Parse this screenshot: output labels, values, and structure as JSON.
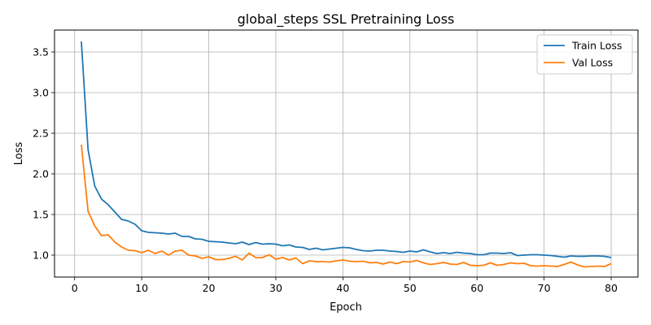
{
  "chart_data": {
    "type": "line",
    "title": "global_steps SSL Pretraining Loss",
    "xlabel": "Epoch",
    "ylabel": "Loss",
    "xlim": [
      -3,
      84
    ],
    "ylim": [
      0.73,
      3.77
    ],
    "xticks": [
      0,
      10,
      20,
      30,
      40,
      50,
      60,
      70,
      80
    ],
    "yticks": [
      1.0,
      1.5,
      2.0,
      2.5,
      3.0,
      3.5
    ],
    "xtick_labels": [
      "0",
      "10",
      "20",
      "30",
      "40",
      "50",
      "60",
      "70",
      "80"
    ],
    "ytick_labels": [
      "1.0",
      "1.5",
      "2.0",
      "2.5",
      "3.0",
      "3.5"
    ],
    "grid": true,
    "legend": "top-right",
    "x": [
      1,
      2,
      3,
      4,
      5,
      6,
      7,
      8,
      9,
      10,
      11,
      12,
      13,
      14,
      15,
      16,
      17,
      18,
      19,
      20,
      21,
      22,
      23,
      24,
      25,
      26,
      27,
      28,
      29,
      30,
      31,
      32,
      33,
      34,
      35,
      36,
      37,
      38,
      39,
      40,
      41,
      42,
      43,
      44,
      45,
      46,
      47,
      48,
      49,
      50,
      51,
      52,
      53,
      54,
      55,
      56,
      57,
      58,
      59,
      60,
      61,
      62,
      63,
      64,
      65,
      66,
      67,
      68,
      69,
      70,
      71,
      72,
      73,
      74,
      75,
      76,
      77,
      78,
      79,
      80
    ],
    "series": [
      {
        "name": "Train Loss",
        "color": "#1f77b4",
        "values": [
          3.63,
          2.3,
          1.85,
          1.69,
          1.62,
          1.53,
          1.44,
          1.42,
          1.38,
          1.3,
          1.28,
          1.275,
          1.27,
          1.26,
          1.27,
          1.23,
          1.23,
          1.2,
          1.195,
          1.17,
          1.165,
          1.16,
          1.15,
          1.14,
          1.16,
          1.13,
          1.155,
          1.135,
          1.14,
          1.135,
          1.115,
          1.125,
          1.1,
          1.095,
          1.07,
          1.085,
          1.065,
          1.075,
          1.085,
          1.095,
          1.09,
          1.07,
          1.055,
          1.05,
          1.06,
          1.06,
          1.05,
          1.045,
          1.035,
          1.05,
          1.04,
          1.065,
          1.04,
          1.02,
          1.03,
          1.02,
          1.035,
          1.025,
          1.02,
          1.005,
          1.005,
          1.025,
          1.025,
          1.02,
          1.03,
          0.995,
          1.0,
          1.005,
          1.005,
          1.0,
          0.995,
          0.985,
          0.975,
          0.99,
          0.985,
          0.985,
          0.99,
          0.99,
          0.985,
          0.97
        ]
      },
      {
        "name": "Val Loss",
        "color": "#ff7f0e",
        "values": [
          2.36,
          1.54,
          1.36,
          1.24,
          1.25,
          1.16,
          1.1,
          1.06,
          1.055,
          1.03,
          1.06,
          1.02,
          1.05,
          1.0,
          1.05,
          1.06,
          1.0,
          0.99,
          0.96,
          0.98,
          0.945,
          0.945,
          0.96,
          0.985,
          0.94,
          1.025,
          0.97,
          0.97,
          1.005,
          0.95,
          0.97,
          0.94,
          0.965,
          0.895,
          0.93,
          0.92,
          0.92,
          0.915,
          0.93,
          0.94,
          0.925,
          0.92,
          0.925,
          0.905,
          0.91,
          0.89,
          0.915,
          0.895,
          0.92,
          0.915,
          0.935,
          0.905,
          0.885,
          0.895,
          0.91,
          0.89,
          0.885,
          0.91,
          0.875,
          0.87,
          0.875,
          0.905,
          0.875,
          0.885,
          0.905,
          0.895,
          0.9,
          0.87,
          0.865,
          0.87,
          0.865,
          0.86,
          0.885,
          0.915,
          0.88,
          0.855,
          0.86,
          0.865,
          0.86,
          0.895
        ]
      }
    ]
  }
}
